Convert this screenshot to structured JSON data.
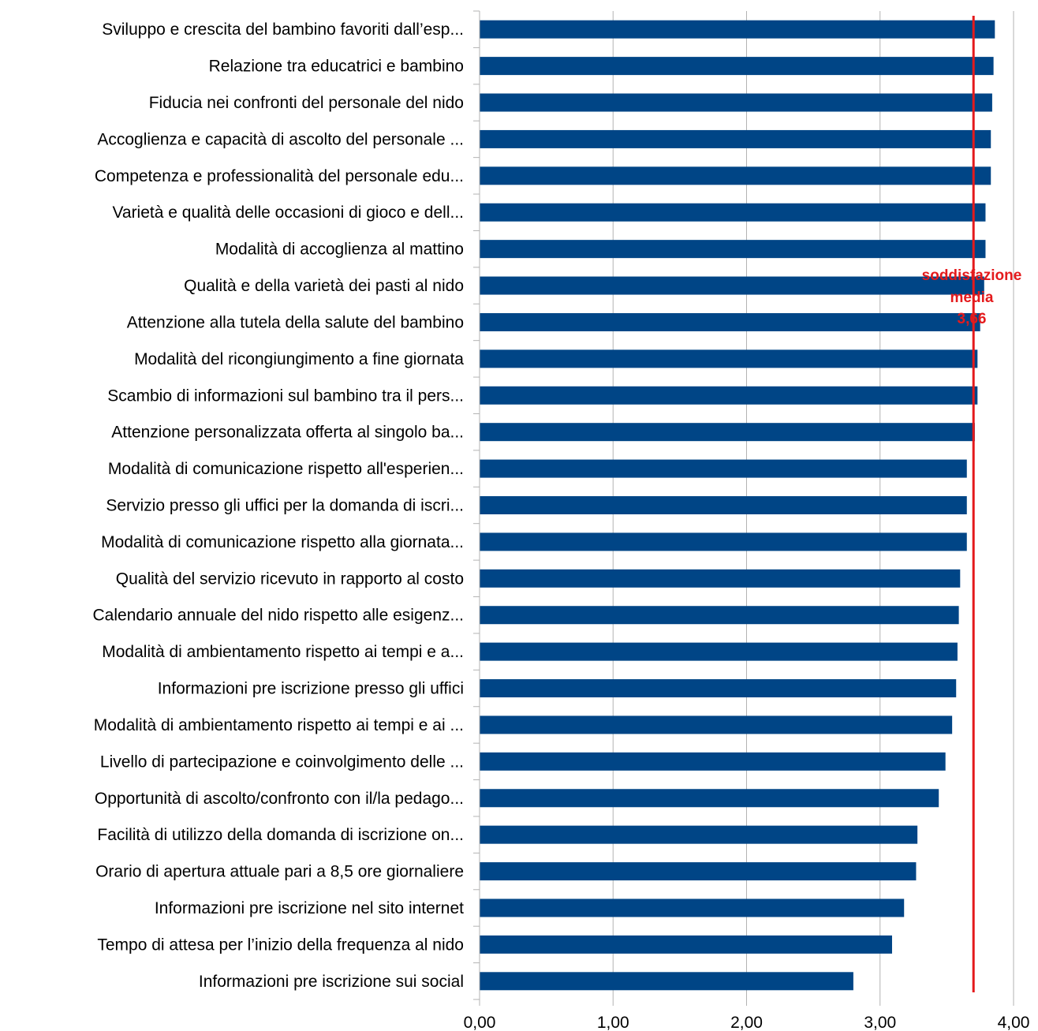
{
  "chart_data": {
    "type": "bar",
    "orientation": "horizontal",
    "categories": [
      "Sviluppo e crescita del bambino favoriti dall’esp...",
      "Relazione tra educatrici e bambino",
      "Fiducia nei confronti del personale del nido",
      "Accoglienza e capacità di ascolto del personale ...",
      "Competenza e professionalità del personale edu...",
      "Varietà e qualità delle occasioni di gioco e dell...",
      "Modalità di accoglienza al mattino ",
      "Qualità e della varietà dei pasti al nido ",
      "Attenzione alla tutela della salute del bambino",
      "Modalità del ricongiungimento a fine giornata",
      "Scambio di informazioni sul bambino tra il pers...",
      "Attenzione personalizzata offerta al singolo ba...",
      "Modalità di comunicazione rispetto all'esperien...",
      "Servizio presso gli uffici per la domanda di iscri...",
      "Modalità di comunicazione rispetto alla giornata...",
      "Qualità del servizio ricevuto in rapporto al costo ",
      "Calendario annuale del nido rispetto alle esigenz...",
      "Modalità di ambientamento rispetto ai tempi e a...",
      "Informazioni pre iscrizione presso gli uffici",
      "Modalità di ambientamento rispetto ai tempi e ai ...",
      "Livello di partecipazione e coinvolgimento delle ...",
      "Opportunità di ascolto/confronto con il/la pedago...",
      "Facilità di utilizzo della domanda di iscrizione on...",
      "Orario di apertura attuale pari a 8,5 ore giornaliere",
      "Informazioni pre iscrizione nel sito internet",
      "Tempo di attesa per l’inizio della frequenza al nido",
      "Informazioni pre iscrizione sui social"
    ],
    "values": [
      3.86,
      3.85,
      3.84,
      3.83,
      3.83,
      3.79,
      3.79,
      3.78,
      3.75,
      3.73,
      3.73,
      3.71,
      3.65,
      3.65,
      3.65,
      3.6,
      3.59,
      3.58,
      3.57,
      3.54,
      3.49,
      3.44,
      3.28,
      3.27,
      3.18,
      3.09,
      2.8
    ],
    "xlim": [
      0,
      4
    ],
    "xticks": [
      "0,00",
      "1,00",
      "2,00",
      "3,00",
      "4,00"
    ],
    "xtick_values": [
      0,
      1,
      2,
      3,
      4
    ],
    "grid": "vertical",
    "bar_color": "#004586",
    "reference_line": {
      "value": 3.7,
      "color": "#e41a1c",
      "label_lines": [
        "soddisfazione",
        "media",
        "3,66"
      ]
    }
  }
}
